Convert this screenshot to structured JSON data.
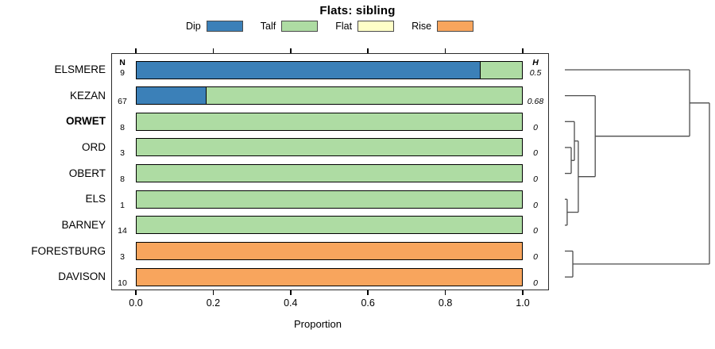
{
  "title": "Flats: sibling",
  "legend": [
    {
      "label": "Dip",
      "color": "#3b80b8"
    },
    {
      "label": "Talf",
      "color": "#aedca3"
    },
    {
      "label": "Flat",
      "color": "#ffffc8"
    },
    {
      "label": "Rise",
      "color": "#f8a55d"
    }
  ],
  "columns": {
    "n_header": "N",
    "h_header": "H"
  },
  "axis": {
    "label": "Proportion",
    "tick_values": [
      0,
      0.2,
      0.4,
      0.6,
      0.8,
      1.0
    ],
    "tick_labels": [
      "0.0",
      "0.2",
      "0.4",
      "0.6",
      "0.8",
      "1.0"
    ]
  },
  "chart_data": {
    "type": "bar",
    "stacked": true,
    "orientation": "horizontal",
    "title": "Flats: sibling",
    "xlabel": "Proportion",
    "xlim": [
      0,
      1
    ],
    "categories": [
      "ELSMERE",
      "KEZAN",
      "ORWET",
      "ORD",
      "OBERT",
      "ELS",
      "BARNEY",
      "FORESTBURG",
      "DAVISON"
    ],
    "bold_category": "ORWET",
    "n_values": [
      9,
      67,
      8,
      3,
      8,
      1,
      14,
      3,
      10
    ],
    "h_values": [
      "0.5",
      "0.68",
      "0",
      "0",
      "0",
      "0",
      "0",
      "0",
      "0"
    ],
    "series": [
      {
        "name": "Dip",
        "color": "#3b80b8",
        "values": [
          0.89,
          0.18,
          0,
          0,
          0,
          0,
          0,
          0,
          0
        ]
      },
      {
        "name": "Talf",
        "color": "#aedca3",
        "values": [
          0.11,
          0.82,
          1,
          1,
          1,
          1,
          1,
          0,
          0
        ]
      },
      {
        "name": "Flat",
        "color": "#ffffc8",
        "values": [
          0,
          0,
          0,
          0,
          0,
          0,
          0,
          0,
          0
        ]
      },
      {
        "name": "Rise",
        "color": "#f8a55d",
        "values": [
          0,
          0,
          0,
          0,
          0,
          0,
          0,
          1,
          1
        ]
      }
    ]
  },
  "dendrogram": {
    "linkage": {
      "height": 1.0,
      "children": [
        {
          "height": 0.863,
          "children": [
            {
              "leaf": "ELSMERE"
            },
            {
              "height": 0.21,
              "children": [
                {
                  "leaf": "KEZAN"
                },
                {
                  "height": 0.093,
                  "children": [
                    {
                      "height": 0.066,
                      "children": [
                        {
                          "leaf": "ORWET"
                        },
                        {
                          "height": 0.044,
                          "children": [
                            {
                              "leaf": "ORD"
                            },
                            {
                              "leaf": "OBERT"
                            }
                          ]
                        }
                      ]
                    },
                    {
                      "height": 0.016,
                      "children": [
                        {
                          "leaf": "ELS"
                        },
                        {
                          "leaf": "BARNEY"
                        }
                      ]
                    }
                  ]
                }
              ]
            }
          ]
        },
        {
          "height": 0.055,
          "children": [
            {
              "leaf": "FORESTBURG"
            },
            {
              "leaf": "DAVISON"
            }
          ]
        }
      ]
    }
  }
}
